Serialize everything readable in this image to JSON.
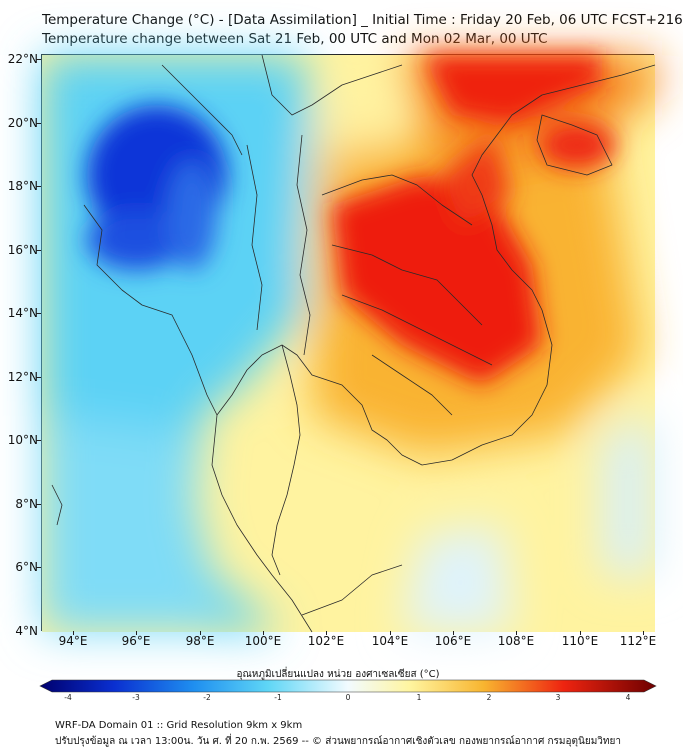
{
  "header": {
    "title_line1": "Temperature Change (°C) - [Data Assimilation] _ Initial Time : Friday 20 Feb, 06 UTC FCST+216",
    "title_line2": "Temperature change between Sat 21 Feb, 00 UTC and Mon 02 Mar, 00 UTC"
  },
  "axes": {
    "lat_labels": [
      "22°N",
      "20°N",
      "18°N",
      "16°N",
      "14°N",
      "12°N",
      "10°N",
      "8°N",
      "6°N",
      "4°N"
    ],
    "lon_labels": [
      "94°E",
      "96°E",
      "98°E",
      "100°E",
      "102°E",
      "104°E",
      "106°E",
      "108°E",
      "110°E",
      "112°E"
    ]
  },
  "colorbar": {
    "title": "อุณหภูมิเปลี่ยนแปลง หน่วย องศาเซลเซียส (°C)",
    "min": -4,
    "max": 4,
    "tick_labels": [
      "-4",
      "-3",
      "-2",
      "-1",
      "0",
      "1",
      "2",
      "3",
      "4"
    ]
  },
  "footer": {
    "line1": "WRF-DA Domain 01 :: Grid Resolution 9km x 9km",
    "line2": "ปรับปรุงข้อมูล ณ เวลา 13:00น. วัน ศ. ที่ 20 ก.พ. 2569 -- © ส่วนพยากรณ์อากาศเชิงตัวเลข กองพยากรณ์อากาศ กรมอุตุนิยมวิทยา"
  },
  "colors": {
    "cold_strong": "#0a3fd6",
    "cold": "#33b8f0",
    "neutral": "#e8f6ff",
    "warm_light": "#fff6b0",
    "warm": "#f5a020",
    "hot": "#ef1a10"
  }
}
